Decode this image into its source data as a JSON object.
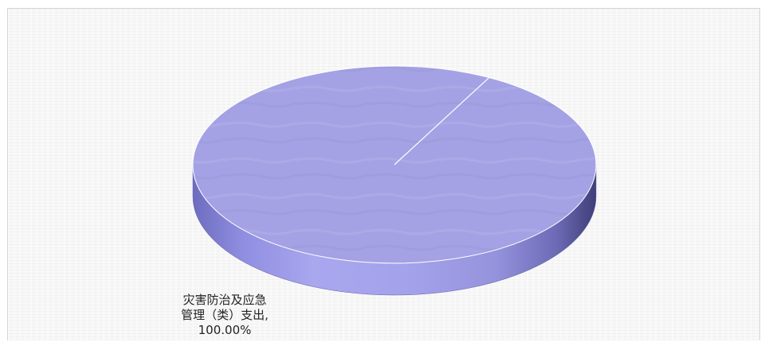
{
  "chart_data": {
    "type": "pie",
    "style": "3d",
    "title": "",
    "series": [
      {
        "name": "",
        "slices": [
          {
            "label": "灾害防治及应急管理（类）支出",
            "value": 100.0,
            "display": "100.00%"
          }
        ]
      }
    ],
    "label_lines": [
      "灾害防治及应急",
      "管理（类）支出,",
      "100.00%"
    ],
    "legend": "none",
    "colors": {
      "top": "#a4a2e4",
      "side": "#8482d0",
      "edge": "#ffffff"
    }
  }
}
